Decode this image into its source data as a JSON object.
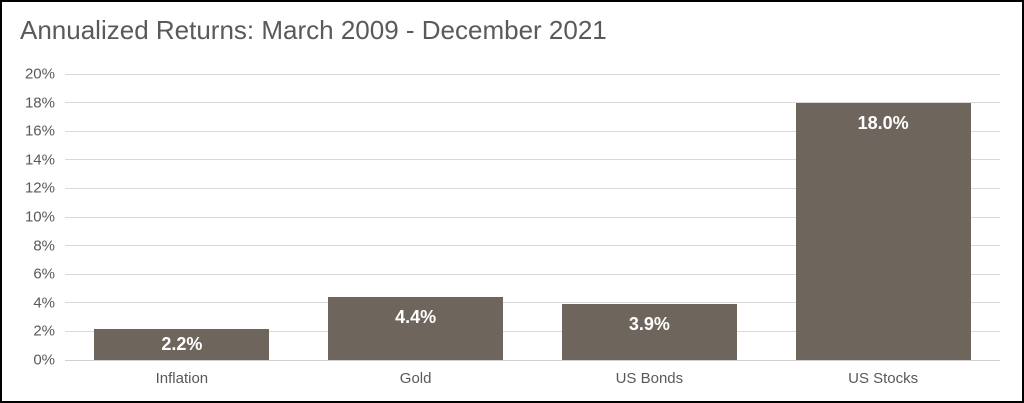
{
  "window": {
    "background": "#ffffff",
    "border_color": "#000000"
  },
  "chart": {
    "title": "Annualized Returns: March 2009 - December 2021",
    "title_color": "#5a5a5a",
    "bar_color": "#6e655d",
    "grid_color": "#d9d9d9",
    "axis_text_color": "#595959",
    "data_label_color": "#ffffff"
  },
  "chart_data": {
    "type": "bar",
    "title": "Annualized Returns: March 2009 - December 2021",
    "categories": [
      "Inflation",
      "Gold",
      "US Bonds",
      "US Stocks"
    ],
    "values": [
      2.2,
      4.4,
      3.9,
      18.0
    ],
    "data_labels": [
      "2.2%",
      "4.4%",
      "3.9%",
      "18.0%"
    ],
    "xlabel": "",
    "ylabel": "",
    "ylim": [
      0,
      20
    ],
    "ytick_step": 2,
    "ytick_labels": [
      "0%",
      "2%",
      "4%",
      "6%",
      "8%",
      "10%",
      "12%",
      "14%",
      "16%",
      "18%",
      "20%"
    ],
    "grid": true,
    "legend": false,
    "data_label_position": "inside-end"
  }
}
